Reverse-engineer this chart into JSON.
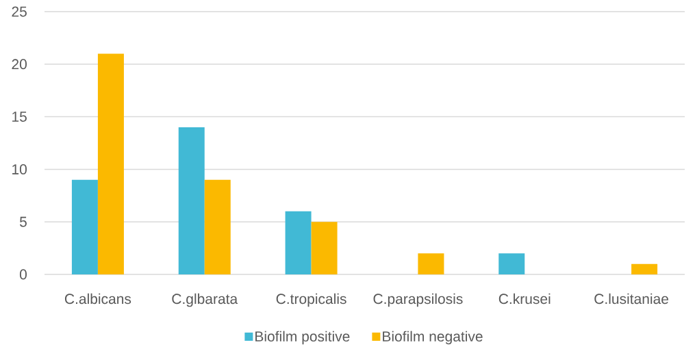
{
  "chart_data": {
    "type": "bar",
    "categories": [
      "C.albicans",
      "C.glbarata",
      "C.tropicalis",
      "C.parapsilosis",
      "C.krusei",
      "C.lusitaniae"
    ],
    "series": [
      {
        "name": "Biofilm positive",
        "color": "#41b9d5",
        "values": [
          9,
          14,
          6,
          0,
          2,
          0
        ]
      },
      {
        "name": "Biofilm negative",
        "color": "#fbb900",
        "values": [
          21,
          9,
          5,
          2,
          0,
          1
        ]
      }
    ],
    "ylim": [
      0,
      25
    ],
    "yticks": [
      0,
      5,
      10,
      15,
      20,
      25
    ],
    "grid": "y",
    "legend": "bottom"
  }
}
